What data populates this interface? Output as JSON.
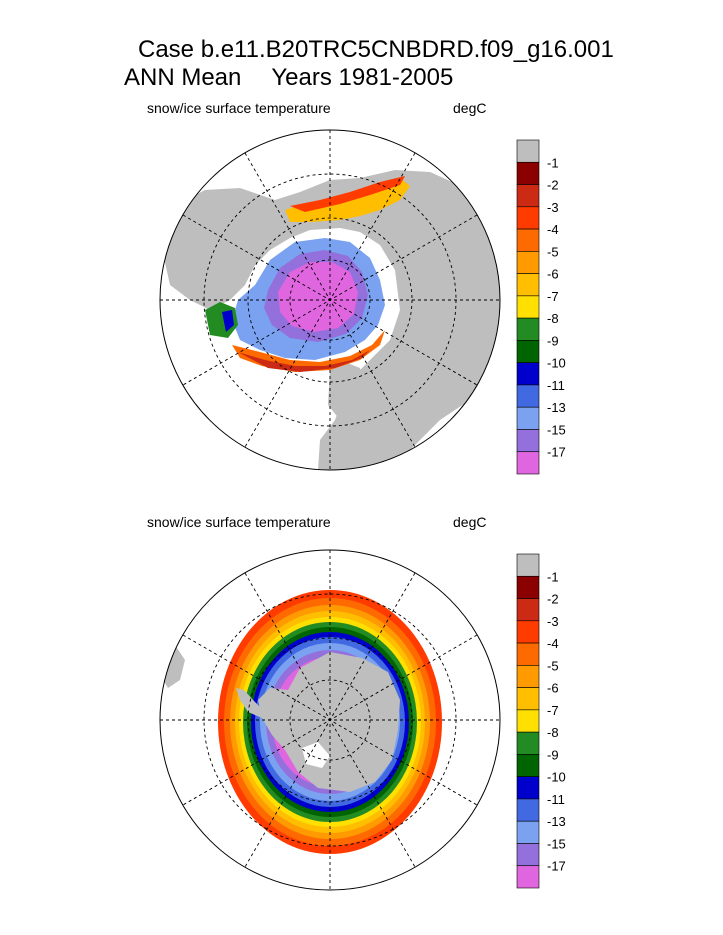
{
  "title": {
    "line1": "Case b.e11.B20TRC5CNBDRD.f09_g16.001",
    "season": "ANN Mean",
    "years": "Years 1981-2005"
  },
  "panels": [
    {
      "id": "north",
      "variable": "snow/ice surface temperature",
      "units": "degC",
      "hemisphere": "Northern",
      "projection": "polar stereographic"
    },
    {
      "id": "south",
      "variable": "snow/ice surface temperature",
      "units": "degC",
      "hemisphere": "Southern",
      "projection": "polar stereographic"
    }
  ],
  "colorbar": {
    "levels": [
      "-1",
      "-2",
      "-3",
      "-4",
      "-5",
      "-6",
      "-7",
      "-8",
      "-9",
      "-10",
      "-11",
      "-13",
      "-15",
      "-17"
    ],
    "colors": [
      "#bebebe",
      "#8b0000",
      "#cc2a14",
      "#ff3b00",
      "#ff6a00",
      "#ff9a00",
      "#ffbe00",
      "#ffe000",
      "#228b22",
      "#006400",
      "#0000cd",
      "#4169e1",
      "#7aa2f0",
      "#9370db",
      "#e066e0"
    ]
  },
  "colors": {
    "land": "#bebebe",
    "ocean": "#ffffff",
    "grid": "#000000"
  }
}
